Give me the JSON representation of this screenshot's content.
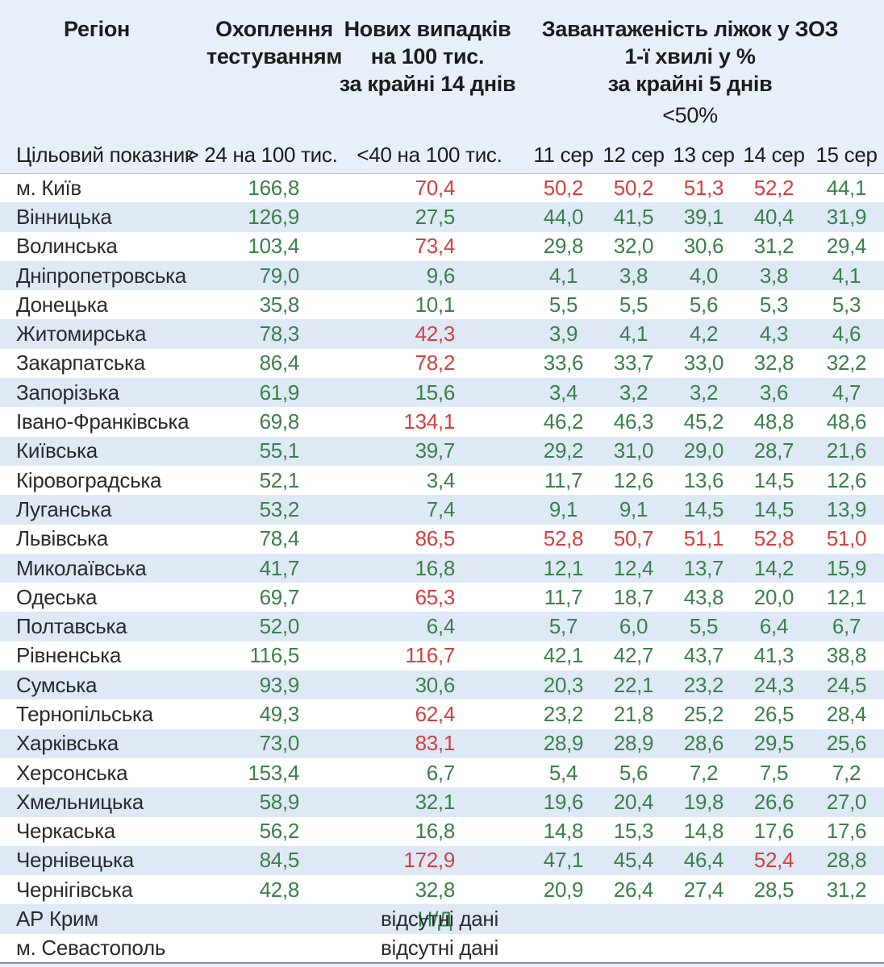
{
  "page": {
    "background": "#e9eff8",
    "stripe": "#dfe9f6",
    "bottom_rule": "#8f949a"
  },
  "chart_data": {
    "type": "table",
    "headers": {
      "region": "Регіон",
      "testing": "Охоплення\nтестуванням",
      "new_cases": "Нових випадків\nна 100 тис.\nза крайні 14 днів",
      "bed_occupancy": "Завантаженість ліжок у ЗОЗ\n1-ї хвилі у %\nза крайні 5 днів",
      "bed_threshold": "<50%",
      "dates": [
        "11 сер",
        "12 сер",
        "13 сер",
        "14 сер",
        "15 сер"
      ]
    },
    "target_row": {
      "label": "Цільовий показник",
      "testing": "> 24 на 100 тис.",
      "new_cases": "<40 на 100 тис."
    },
    "colors": {
      "good": "#3a8148",
      "bad": "#d4403f"
    },
    "rows": [
      {
        "region": "м. Київ",
        "testing": [
          "166,8",
          "g"
        ],
        "cases": [
          "70,4",
          "r"
        ],
        "beds": [
          [
            "50,2",
            "r"
          ],
          [
            "50,2",
            "r"
          ],
          [
            "51,3",
            "r"
          ],
          [
            "52,2",
            "r"
          ],
          [
            "44,1",
            "g"
          ]
        ]
      },
      {
        "region": "Вінницька",
        "testing": [
          "126,9",
          "g"
        ],
        "cases": [
          "27,5",
          "g"
        ],
        "beds": [
          [
            "44,0",
            "g"
          ],
          [
            "41,5",
            "g"
          ],
          [
            "39,1",
            "g"
          ],
          [
            "40,4",
            "g"
          ],
          [
            "31,9",
            "g"
          ]
        ]
      },
      {
        "region": "Волинська",
        "testing": [
          "103,4",
          "g"
        ],
        "cases": [
          "73,4",
          "r"
        ],
        "beds": [
          [
            "29,8",
            "g"
          ],
          [
            "32,0",
            "g"
          ],
          [
            "30,6",
            "g"
          ],
          [
            "31,2",
            "g"
          ],
          [
            "29,4",
            "g"
          ]
        ]
      },
      {
        "region": "Дніпропетровська",
        "testing": [
          "79,0",
          "g"
        ],
        "cases": [
          "9,6",
          "g"
        ],
        "beds": [
          [
            "4,1",
            "g"
          ],
          [
            "3,8",
            "g"
          ],
          [
            "4,0",
            "g"
          ],
          [
            "3,8",
            "g"
          ],
          [
            "4,1",
            "g"
          ]
        ]
      },
      {
        "region": "Донецька",
        "testing": [
          "35,8",
          "g"
        ],
        "cases": [
          "10,1",
          "g"
        ],
        "beds": [
          [
            "5,5",
            "g"
          ],
          [
            "5,5",
            "g"
          ],
          [
            "5,6",
            "g"
          ],
          [
            "5,3",
            "g"
          ],
          [
            "5,3",
            "g"
          ]
        ]
      },
      {
        "region": "Житомирська",
        "testing": [
          "78,3",
          "g"
        ],
        "cases": [
          "42,3",
          "r"
        ],
        "beds": [
          [
            "3,9",
            "g"
          ],
          [
            "4,1",
            "g"
          ],
          [
            "4,2",
            "g"
          ],
          [
            "4,3",
            "g"
          ],
          [
            "4,6",
            "g"
          ]
        ]
      },
      {
        "region": "Закарпатська",
        "testing": [
          "86,4",
          "g"
        ],
        "cases": [
          "78,2",
          "r"
        ],
        "beds": [
          [
            "33,6",
            "g"
          ],
          [
            "33,7",
            "g"
          ],
          [
            "33,0",
            "g"
          ],
          [
            "32,8",
            "g"
          ],
          [
            "32,2",
            "g"
          ]
        ]
      },
      {
        "region": "Запорізька",
        "testing": [
          "61,9",
          "g"
        ],
        "cases": [
          "15,6",
          "g"
        ],
        "beds": [
          [
            "3,4",
            "g"
          ],
          [
            "3,2",
            "g"
          ],
          [
            "3,2",
            "g"
          ],
          [
            "3,6",
            "g"
          ],
          [
            "4,7",
            "g"
          ]
        ]
      },
      {
        "region": "Івано-Франківська",
        "testing": [
          "69,8",
          "g"
        ],
        "cases": [
          "134,1",
          "r"
        ],
        "beds": [
          [
            "46,2",
            "g"
          ],
          [
            "46,3",
            "g"
          ],
          [
            "45,2",
            "g"
          ],
          [
            "48,8",
            "g"
          ],
          [
            "48,6",
            "g"
          ]
        ]
      },
      {
        "region": "Київська",
        "testing": [
          "55,1",
          "g"
        ],
        "cases": [
          "39,7",
          "g"
        ],
        "beds": [
          [
            "29,2",
            "g"
          ],
          [
            "31,0",
            "g"
          ],
          [
            "29,0",
            "g"
          ],
          [
            "28,7",
            "g"
          ],
          [
            "21,6",
            "g"
          ]
        ]
      },
      {
        "region": "Кіровоградська",
        "testing": [
          "52,1",
          "g"
        ],
        "cases": [
          "3,4",
          "g"
        ],
        "beds": [
          [
            "11,7",
            "g"
          ],
          [
            "12,6",
            "g"
          ],
          [
            "13,6",
            "g"
          ],
          [
            "14,5",
            "g"
          ],
          [
            "12,6",
            "g"
          ]
        ]
      },
      {
        "region": "Луганська",
        "testing": [
          "53,2",
          "g"
        ],
        "cases": [
          "7,4",
          "g"
        ],
        "beds": [
          [
            "9,1",
            "g"
          ],
          [
            "9,1",
            "g"
          ],
          [
            "14,5",
            "g"
          ],
          [
            "14,5",
            "g"
          ],
          [
            "13,9",
            "g"
          ]
        ]
      },
      {
        "region": "Львівська",
        "testing": [
          "78,4",
          "g"
        ],
        "cases": [
          "86,5",
          "r"
        ],
        "beds": [
          [
            "52,8",
            "r"
          ],
          [
            "50,7",
            "r"
          ],
          [
            "51,1",
            "r"
          ],
          [
            "52,8",
            "r"
          ],
          [
            "51,0",
            "r"
          ]
        ]
      },
      {
        "region": "Миколаївська",
        "testing": [
          "41,7",
          "g"
        ],
        "cases": [
          "16,8",
          "g"
        ],
        "beds": [
          [
            "12,1",
            "g"
          ],
          [
            "12,4",
            "g"
          ],
          [
            "13,7",
            "g"
          ],
          [
            "14,2",
            "g"
          ],
          [
            "15,9",
            "g"
          ]
        ]
      },
      {
        "region": "Одеська",
        "testing": [
          "69,7",
          "g"
        ],
        "cases": [
          "65,3",
          "r"
        ],
        "beds": [
          [
            "11,7",
            "g"
          ],
          [
            "18,7",
            "g"
          ],
          [
            "43,8",
            "g"
          ],
          [
            "20,0",
            "g"
          ],
          [
            "12,1",
            "g"
          ]
        ]
      },
      {
        "region": "Полтавська",
        "testing": [
          "52,0",
          "g"
        ],
        "cases": [
          "6,4",
          "g"
        ],
        "beds": [
          [
            "5,7",
            "g"
          ],
          [
            "6,0",
            "g"
          ],
          [
            "5,5",
            "g"
          ],
          [
            "6,4",
            "g"
          ],
          [
            "6,7",
            "g"
          ]
        ]
      },
      {
        "region": "Рівненська",
        "testing": [
          "116,5",
          "g"
        ],
        "cases": [
          "116,7",
          "r"
        ],
        "beds": [
          [
            "42,1",
            "g"
          ],
          [
            "42,7",
            "g"
          ],
          [
            "43,7",
            "g"
          ],
          [
            "41,3",
            "g"
          ],
          [
            "38,8",
            "g"
          ]
        ]
      },
      {
        "region": "Сумська",
        "testing": [
          "93,9",
          "g"
        ],
        "cases": [
          "30,6",
          "g"
        ],
        "beds": [
          [
            "20,3",
            "g"
          ],
          [
            "22,1",
            "g"
          ],
          [
            "23,2",
            "g"
          ],
          [
            "24,3",
            "g"
          ],
          [
            "24,5",
            "g"
          ]
        ]
      },
      {
        "region": "Тернопільська",
        "testing": [
          "49,3",
          "g"
        ],
        "cases": [
          "62,4",
          "r"
        ],
        "beds": [
          [
            "23,2",
            "g"
          ],
          [
            "21,8",
            "g"
          ],
          [
            "25,2",
            "g"
          ],
          [
            "26,5",
            "g"
          ],
          [
            "28,4",
            "g"
          ]
        ]
      },
      {
        "region": "Харківська",
        "testing": [
          "73,0",
          "g"
        ],
        "cases": [
          "83,1",
          "r"
        ],
        "beds": [
          [
            "28,9",
            "g"
          ],
          [
            "28,9",
            "g"
          ],
          [
            "28,6",
            "g"
          ],
          [
            "29,5",
            "g"
          ],
          [
            "25,6",
            "g"
          ]
        ]
      },
      {
        "region": "Херсонська",
        "testing": [
          "153,4",
          "g"
        ],
        "cases": [
          "6,7",
          "g"
        ],
        "beds": [
          [
            "5,4",
            "g"
          ],
          [
            "5,6",
            "g"
          ],
          [
            "7,2",
            "g"
          ],
          [
            "7,5",
            "g"
          ],
          [
            "7,2",
            "g"
          ]
        ]
      },
      {
        "region": "Хмельницька",
        "testing": [
          "58,9",
          "g"
        ],
        "cases": [
          "32,1",
          "g"
        ],
        "beds": [
          [
            "19,6",
            "g"
          ],
          [
            "20,4",
            "g"
          ],
          [
            "19,8",
            "g"
          ],
          [
            "26,6",
            "g"
          ],
          [
            "27,0",
            "g"
          ]
        ]
      },
      {
        "region": "Черкаська",
        "testing": [
          "56,2",
          "g"
        ],
        "cases": [
          "16,8",
          "g"
        ],
        "beds": [
          [
            "14,8",
            "g"
          ],
          [
            "15,3",
            "g"
          ],
          [
            "14,8",
            "g"
          ],
          [
            "17,6",
            "g"
          ],
          [
            "17,6",
            "g"
          ]
        ]
      },
      {
        "region": "Чернівецька",
        "testing": [
          "84,5",
          "g"
        ],
        "cases": [
          "172,9",
          "r"
        ],
        "beds": [
          [
            "47,1",
            "g"
          ],
          [
            "45,4",
            "g"
          ],
          [
            "46,4",
            "g"
          ],
          [
            "52,4",
            "r"
          ],
          [
            "28,8",
            "g"
          ]
        ]
      },
      {
        "region": "Чернігівська",
        "testing": [
          "42,8",
          "g"
        ],
        "cases": [
          "32,8",
          "g"
        ],
        "beds": [
          [
            "20,9",
            "g"
          ],
          [
            "26,4",
            "g"
          ],
          [
            "27,4",
            "g"
          ],
          [
            "28,5",
            "g"
          ],
          [
            "31,2",
            "g"
          ]
        ]
      }
    ],
    "no_data_rows": [
      {
        "region": "АР Крим",
        "text": "відсутні дані",
        "overlay": "Н/Д"
      },
      {
        "region": "м. Севастополь",
        "text": "відсутні дані",
        "overlay": ""
      }
    ]
  }
}
